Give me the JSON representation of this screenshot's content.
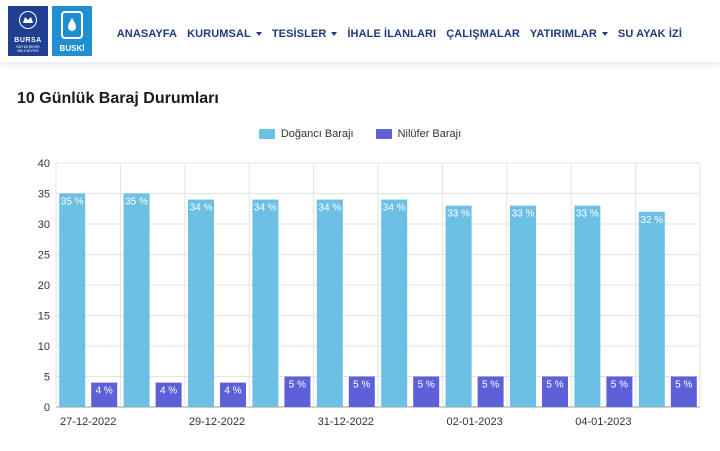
{
  "header": {
    "logo_bursa": {
      "line1": "BURSA",
      "line2": "BÜYÜKŞEHİR",
      "line3": "BELEDİYESİ"
    },
    "logo_buski": "BUSKİ",
    "nav": [
      {
        "label": "ANASAYFA",
        "has_dropdown": false
      },
      {
        "label": "KURUMSAL",
        "has_dropdown": true
      },
      {
        "label": "TESİSLER",
        "has_dropdown": true
      },
      {
        "label": "İHALE İLANLARI",
        "has_dropdown": false
      },
      {
        "label": "ÇALIŞMALAR",
        "has_dropdown": false
      },
      {
        "label": "YATIRIMLAR",
        "has_dropdown": true
      },
      {
        "label": "SU AYAK İZİ",
        "has_dropdown": false
      }
    ]
  },
  "page": {
    "title": "10 Günlük Baraj Durumları"
  },
  "colors": {
    "dogancı": "#6cc0e4",
    "nilufer": "#5d60d8",
    "brand_blue": "#1f3f93",
    "buski_blue": "#1f8fcf"
  },
  "chart_data": {
    "type": "bar",
    "y_ticks": [
      "0",
      "5",
      "10",
      "15",
      "20",
      "25",
      "30",
      "35",
      "40"
    ],
    "ylim": [
      0,
      40
    ],
    "x_tick_labels": [
      "27-12-2022",
      "29-12-2022",
      "31-12-2022",
      "02-01-2023",
      "04-01-2023"
    ],
    "series": [
      {
        "name": "Doğancı Barajı",
        "color": "#6cc0e4",
        "values": [
          35,
          35,
          34,
          34,
          34,
          34,
          33,
          33,
          33,
          32
        ]
      },
      {
        "name": "Nilüfer Barajı",
        "color": "#5d60d8",
        "values": [
          4,
          4,
          4,
          5,
          5,
          5,
          5,
          5,
          5,
          5
        ]
      }
    ],
    "label_suffix": " %",
    "legend_position": "top-center",
    "grid": true
  }
}
